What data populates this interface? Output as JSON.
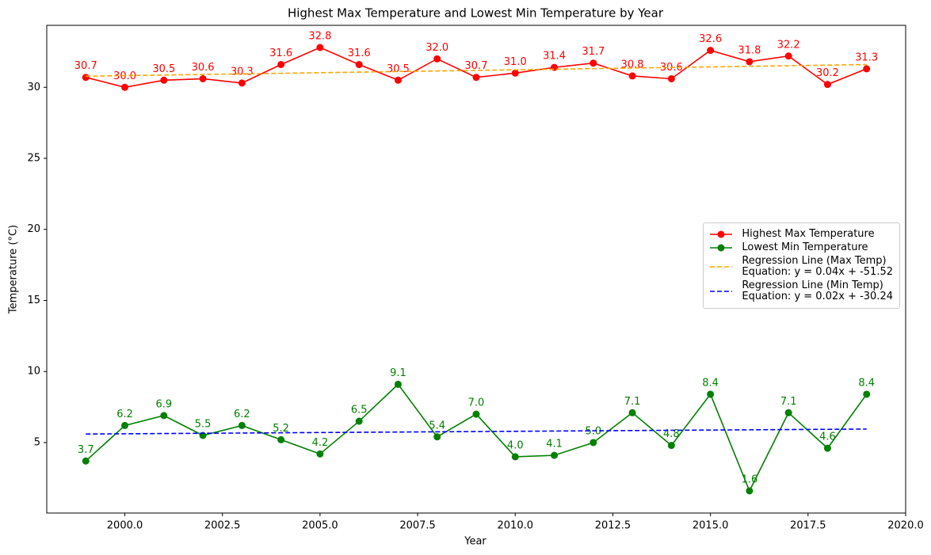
{
  "chart_data": {
    "type": "line",
    "title": "Highest Max Temperature and Lowest Min Temperature by Year",
    "x_label": "Year",
    "y_label": "Temperature (°C)",
    "x": [
      1999,
      2000,
      2001,
      2002,
      2003,
      2004,
      2005,
      2006,
      2007,
      2008,
      2009,
      2010,
      2011,
      2012,
      2013,
      2014,
      2015,
      2016,
      2017,
      2018,
      2019
    ],
    "series": [
      {
        "name": "Highest Max Temperature",
        "color": "#ff0000",
        "marker": true,
        "values": [
          30.7,
          30.0,
          30.5,
          30.6,
          30.3,
          31.6,
          32.8,
          31.6,
          30.5,
          32.0,
          30.7,
          31.0,
          31.4,
          31.7,
          30.8,
          30.6,
          32.6,
          31.8,
          32.2,
          30.2,
          31.3
        ],
        "value_labels": [
          "30.7",
          "30.0",
          "30.5",
          "30.6",
          "30.3",
          "31.6",
          "32.8",
          "31.6",
          "30.5",
          "32.0",
          "30.7",
          "31.0",
          "31.4",
          "31.7",
          "30.8",
          "30.6",
          "32.6",
          "31.8",
          "32.2",
          "30.2",
          "31.3"
        ]
      },
      {
        "name": "Lowest Min Temperature",
        "color": "#008000",
        "marker": true,
        "values": [
          3.7,
          6.2,
          6.9,
          5.5,
          6.2,
          5.2,
          4.2,
          6.5,
          9.1,
          5.4,
          7.0,
          4.0,
          4.1,
          5.0,
          7.1,
          4.8,
          8.4,
          1.6,
          7.1,
          4.6,
          8.4
        ],
        "value_labels": [
          "3.7",
          "6.2",
          "6.9",
          "5.5",
          "6.2",
          "5.2",
          "4.2",
          "6.5",
          "9.1",
          "5.4",
          "7.0",
          "4.0",
          "4.1",
          "5.0",
          "7.1",
          "4.8",
          "8.4",
          "1.6",
          "7.1",
          "4.6",
          "8.4"
        ]
      },
      {
        "name": "Regression Line (Max Temp)\nEquation: y = 0.04x + -51.52",
        "color": "#ffa500",
        "dashed": true,
        "x": [
          1999,
          2019
        ],
        "values": [
          30.78,
          31.6
        ]
      },
      {
        "name": "Regression Line (Min Temp)\nEquation: y = 0.02x + -30.24",
        "color": "#0000ff",
        "dashed": true,
        "x": [
          1999,
          2019
        ],
        "values": [
          5.6,
          5.95
        ]
      }
    ],
    "xlim": [
      1998,
      2020
    ],
    "xticks": [
      {
        "value": 2000,
        "label": "2000.0"
      },
      {
        "value": 2002.5,
        "label": "2002.5"
      },
      {
        "value": 2005,
        "label": "2005.0"
      },
      {
        "value": 2007.5,
        "label": "2007.5"
      },
      {
        "value": 2010,
        "label": "2010.0"
      },
      {
        "value": 2012.5,
        "label": "2012.5"
      },
      {
        "value": 2015,
        "label": "2015.0"
      },
      {
        "value": 2017.5,
        "label": "2017.5"
      },
      {
        "value": 2020,
        "label": "2020.0"
      }
    ],
    "ylim": [
      0.04,
      34.36
    ],
    "yticks": [
      5,
      10,
      15,
      20,
      25,
      30
    ],
    "grid": false,
    "legend": "center right"
  }
}
